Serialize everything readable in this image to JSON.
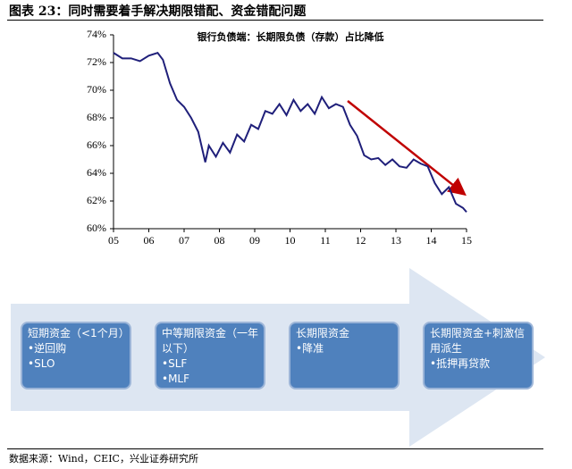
{
  "title": "图表 23：同时需要着手解决期限错配、资金错配问题",
  "chart_data": {
    "type": "line",
    "title": "银行负债端：长期限负债（存款）占比降低",
    "x": [
      2005.0,
      2005.25,
      2005.5,
      2005.75,
      2006.0,
      2006.25,
      2006.4,
      2006.6,
      2006.8,
      2007.0,
      2007.2,
      2007.4,
      2007.6,
      2007.7,
      2007.9,
      2008.1,
      2008.3,
      2008.5,
      2008.7,
      2008.9,
      2009.1,
      2009.3,
      2009.5,
      2009.7,
      2009.9,
      2010.1,
      2010.3,
      2010.5,
      2010.7,
      2010.9,
      2011.1,
      2011.3,
      2011.5,
      2011.7,
      2011.9,
      2012.1,
      2012.3,
      2012.5,
      2012.7,
      2012.9,
      2013.1,
      2013.3,
      2013.5,
      2013.7,
      2013.9,
      2014.1,
      2014.3,
      2014.5,
      2014.7,
      2014.9,
      2015.0
    ],
    "series": [
      {
        "color": "#1f1f7a",
        "values": [
          72.7,
          72.3,
          72.3,
          72.1,
          72.5,
          72.7,
          72.2,
          70.5,
          69.3,
          68.8,
          68.0,
          67.0,
          64.8,
          66.0,
          65.2,
          66.2,
          65.5,
          66.8,
          66.3,
          67.5,
          67.2,
          68.5,
          68.3,
          69.0,
          68.2,
          69.3,
          68.5,
          69.0,
          68.3,
          69.5,
          68.7,
          69.0,
          68.8,
          67.5,
          66.7,
          65.3,
          65.0,
          65.1,
          64.6,
          65.0,
          64.5,
          64.4,
          65.0,
          64.7,
          64.5,
          63.3,
          62.5,
          63.0,
          61.8,
          61.5,
          61.2
        ]
      }
    ],
    "xlim": [
      2005,
      2015
    ],
    "xticks": [
      {
        "value": 2005,
        "label": "05"
      },
      {
        "value": 2006,
        "label": "06"
      },
      {
        "value": 2007,
        "label": "07"
      },
      {
        "value": 2008,
        "label": "08"
      },
      {
        "value": 2009,
        "label": "09"
      },
      {
        "value": 2010,
        "label": "10"
      },
      {
        "value": 2011,
        "label": "11"
      },
      {
        "value": 2012,
        "label": "12"
      },
      {
        "value": 2013,
        "label": "13"
      },
      {
        "value": 2014,
        "label": "14"
      },
      {
        "value": 2015,
        "label": "15"
      }
    ],
    "ylim": [
      60,
      74
    ],
    "yticks": [
      {
        "value": 60,
        "label": "60%"
      },
      {
        "value": 62,
        "label": "62%"
      },
      {
        "value": 64,
        "label": "64%"
      },
      {
        "value": 66,
        "label": "66%"
      },
      {
        "value": 68,
        "label": "68%"
      },
      {
        "value": 70,
        "label": "70%"
      },
      {
        "value": 72,
        "label": "72%"
      },
      {
        "value": 74,
        "label": "74%"
      }
    ]
  },
  "boxes": [
    {
      "title": "短期资金（<1个月）",
      "items": [
        "•逆回购",
        "•SLO"
      ]
    },
    {
      "title": "中等期限资金（一年以下）",
      "items": [
        "•SLF",
        "•MLF"
      ]
    },
    {
      "title": "长期限资金",
      "items": [
        "•降准"
      ]
    },
    {
      "title": "长期限资金+刺激信用派生",
      "items": [
        "•抵押再贷款"
      ]
    }
  ],
  "source": "数据来源：Wind，CEIC，兴业证券研究所"
}
